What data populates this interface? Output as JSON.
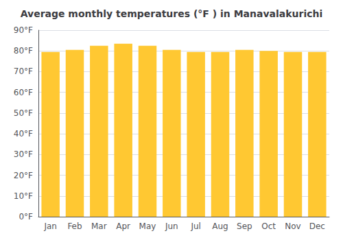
{
  "chart_data": {
    "type": "bar",
    "title": "Average monthly temperatures (°F ) in Manavalakurichi",
    "categories": [
      "Jan",
      "Feb",
      "Mar",
      "Apr",
      "May",
      "Jun",
      "Jul",
      "Aug",
      "Sep",
      "Oct",
      "Nov",
      "Dec"
    ],
    "values": [
      79.5,
      80.5,
      82.5,
      83.5,
      82.5,
      80.5,
      79.5,
      79.5,
      80.5,
      80.0,
      79.5,
      79.5
    ],
    "color": "#FFC832",
    "ylim": [
      0,
      90
    ],
    "yticks": [
      {
        "value": 0,
        "label": "0°F"
      },
      {
        "value": 10,
        "label": "10°F"
      },
      {
        "value": 20,
        "label": "20°F"
      },
      {
        "value": 30,
        "label": "30°F"
      },
      {
        "value": 40,
        "label": "40°F"
      },
      {
        "value": 50,
        "label": "50°F"
      },
      {
        "value": 60,
        "label": "60°F"
      },
      {
        "value": 70,
        "label": "70°F"
      },
      {
        "value": 80,
        "label": "80°F"
      },
      {
        "value": 90,
        "label": "90°F"
      }
    ],
    "grid": true
  }
}
